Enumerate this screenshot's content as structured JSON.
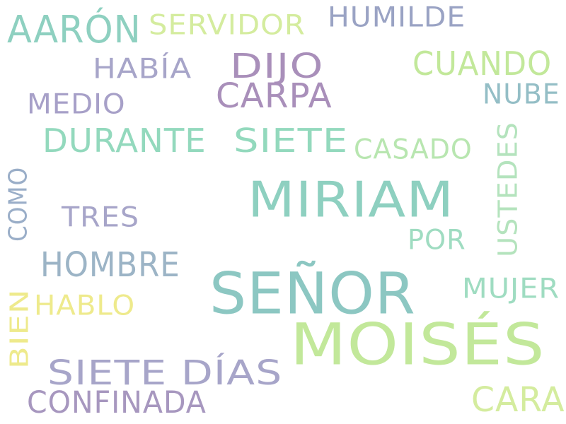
{
  "words": [
    {
      "key": "moises",
      "text": "MOISÉS",
      "color": "#c2e89a"
    },
    {
      "key": "senor",
      "text": "SEÑOR",
      "color": "#8cc7c2"
    },
    {
      "key": "miriam",
      "text": "MIRIAM",
      "color": "#8ed0c0"
    },
    {
      "key": "aaron",
      "text": "AARÓN",
      "color": "#8ed0c0"
    },
    {
      "key": "dijo",
      "text": "DIJO",
      "color": "#a98fba"
    },
    {
      "key": "carpa",
      "text": "CARPA",
      "color": "#a98fba"
    },
    {
      "key": "cuando",
      "text": "CUANDO",
      "color": "#c2e89a"
    },
    {
      "key": "durante",
      "text": "DURANTE",
      "color": "#93d9bd"
    },
    {
      "key": "siete",
      "text": "SIETE",
      "color": "#93d9bd"
    },
    {
      "key": "servidor",
      "text": "SERVIDOR",
      "color": "#d4ec9e"
    },
    {
      "key": "humilde",
      "text": "HUMILDE",
      "color": "#9aa3c4"
    },
    {
      "key": "habia",
      "text": "HABÍA",
      "color": "#a7a5c9"
    },
    {
      "key": "medio",
      "text": "MEDIO",
      "color": "#a7a0c8"
    },
    {
      "key": "nube",
      "text": "NUBE",
      "color": "#94bec6"
    },
    {
      "key": "casado",
      "text": "CASADO",
      "color": "#b8e6b0"
    },
    {
      "key": "ustedes",
      "text": "USTEDES",
      "color": "#b4e3bd"
    },
    {
      "key": "como",
      "text": "COMO",
      "color": "#9aaec8"
    },
    {
      "key": "tres",
      "text": "TRES",
      "color": "#a7a5c9"
    },
    {
      "key": "por",
      "text": "POR",
      "color": "#9fdcc1"
    },
    {
      "key": "hombre",
      "text": "HOMBRE",
      "color": "#9cb4c6"
    },
    {
      "key": "mujer",
      "text": "MUJER",
      "color": "#9fdcc1"
    },
    {
      "key": "hablo",
      "text": "HABLO",
      "color": "#eeea8c"
    },
    {
      "key": "bien",
      "text": "BIEN",
      "color": "#eeea8c"
    },
    {
      "key": "sietedias",
      "text": "SIETE DÍAS",
      "color": "#a7a5c9"
    },
    {
      "key": "confinada",
      "text": "CONFINADA",
      "color": "#a797bf"
    },
    {
      "key": "cara",
      "text": "CARA",
      "color": "#d4ec9e"
    }
  ]
}
